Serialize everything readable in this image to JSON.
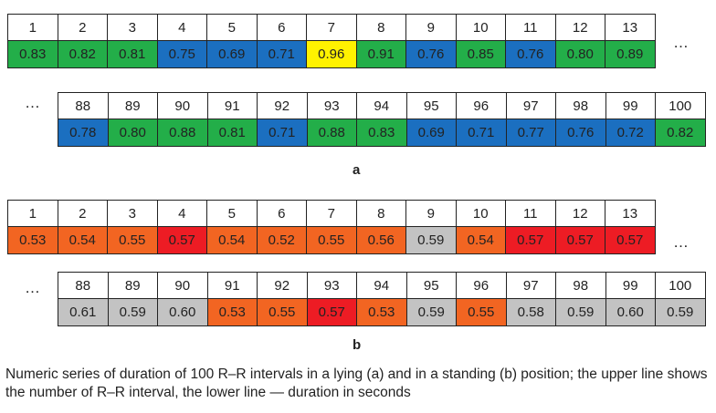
{
  "panel_a": {
    "label": "a",
    "row1": {
      "nums": [
        "1",
        "2",
        "3",
        "4",
        "5",
        "6",
        "7",
        "8",
        "9",
        "10",
        "11",
        "12",
        "13"
      ],
      "vals": [
        "0.83",
        "0.82",
        "0.81",
        "0.75",
        "0.69",
        "0.71",
        "0.96",
        "0.91",
        "0.76",
        "0.85",
        "0.76",
        "0.80",
        "0.89"
      ],
      "colors": [
        "g",
        "g",
        "g",
        "b",
        "b",
        "b",
        "y",
        "g",
        "b",
        "g",
        "b",
        "g",
        "g"
      ]
    },
    "row2": {
      "nums": [
        "88",
        "89",
        "90",
        "91",
        "92",
        "93",
        "94",
        "95",
        "96",
        "97",
        "98",
        "99",
        "100"
      ],
      "vals": [
        "0.78",
        "0.80",
        "0.88",
        "0.81",
        "0.71",
        "0.88",
        "0.83",
        "0.69",
        "0.71",
        "0.77",
        "0.76",
        "0.72",
        "0.82"
      ],
      "colors": [
        "b",
        "g",
        "g",
        "g",
        "b",
        "g",
        "g",
        "b",
        "b",
        "b",
        "b",
        "b",
        "g"
      ]
    }
  },
  "panel_b": {
    "label": "b",
    "row1": {
      "nums": [
        "1",
        "2",
        "3",
        "4",
        "5",
        "6",
        "7",
        "8",
        "9",
        "10",
        "11",
        "12",
        "13"
      ],
      "vals": [
        "0.53",
        "0.54",
        "0.55",
        "0.57",
        "0.54",
        "0.52",
        "0.55",
        "0.56",
        "0.59",
        "0.54",
        "0.57",
        "0.57",
        "0.57"
      ],
      "colors": [
        "o",
        "o",
        "o",
        "r",
        "o",
        "o",
        "o",
        "o",
        "s",
        "o",
        "r",
        "r",
        "r"
      ]
    },
    "row2": {
      "nums": [
        "88",
        "89",
        "90",
        "91",
        "92",
        "93",
        "94",
        "95",
        "96",
        "97",
        "98",
        "99",
        "100"
      ],
      "vals": [
        "0.61",
        "0.59",
        "0.60",
        "0.53",
        "0.55",
        "0.57",
        "0.53",
        "0.59",
        "0.55",
        "0.58",
        "0.59",
        "0.60",
        "0.59"
      ],
      "colors": [
        "s",
        "s",
        "s",
        "o",
        "o",
        "r",
        "o",
        "s",
        "o",
        "s",
        "s",
        "s",
        "s"
      ]
    }
  },
  "ellipsis": "…",
  "colors": {
    "g": "#23ae49",
    "b": "#1b6fc0",
    "y": "#fff200",
    "o": "#f26522",
    "r": "#ed1c24",
    "s": "#c3c3c3"
  },
  "caption": "Numeric series of duration of 100 R–R intervals in a lying (a) and in a standing (b) position; the upper line shows the number of R–R interval, the lower line — duration in seconds"
}
